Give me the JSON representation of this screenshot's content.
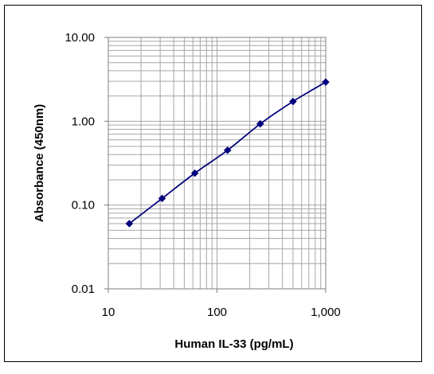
{
  "chart_data": {
    "type": "scatter",
    "title": "",
    "xlabel": "Human IL-33 (pg/mL)",
    "ylabel": "Absorbance (450nm)",
    "x_scale": "log",
    "y_scale": "log",
    "xlim": [
      10,
      2000
    ],
    "ylim": [
      0.01,
      10
    ],
    "x_ticks": [
      {
        "value": 10,
        "label": "10"
      },
      {
        "value": 100,
        "label": "100"
      },
      {
        "value": 1000,
        "label": "1,000"
      }
    ],
    "y_ticks": [
      {
        "value": 0.01,
        "label": "0.01"
      },
      {
        "value": 0.1,
        "label": "0.10"
      },
      {
        "value": 1,
        "label": "1.00"
      },
      {
        "value": 10,
        "label": "10.00"
      }
    ],
    "grid": true,
    "legend": "none",
    "series": [
      {
        "x": [
          15.6,
          31.25,
          62.5,
          125,
          250,
          500,
          1000
        ],
        "y": [
          0.06,
          0.12,
          0.24,
          0.45,
          0.93,
          1.72,
          2.93
        ],
        "marker": "diamond",
        "line": "smooth"
      }
    ],
    "colors": {
      "series": "#00007F",
      "grid": "#A6A6A6",
      "axis": "#7F7F7F"
    }
  }
}
